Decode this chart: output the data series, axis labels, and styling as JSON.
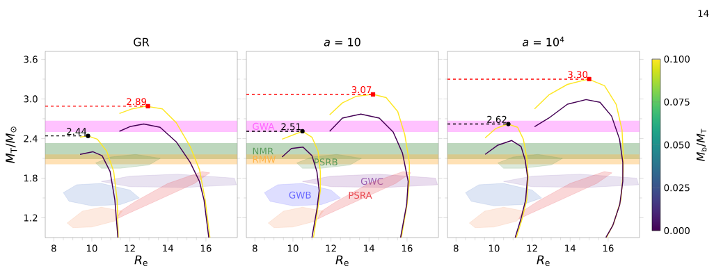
{
  "chart_data": [
    {
      "type": "line",
      "title": "GR",
      "xlabel": "*R*$_{e}$",
      "ylabel": "*M*$_{T}$/*M*$_{⊙}$",
      "xlim": [
        7.55,
        17.65
      ],
      "ylim": [
        0.9,
        3.72
      ],
      "xticks": [
        8,
        10,
        12,
        14,
        16
      ],
      "yticks": [
        1.2,
        1.8,
        2.4,
        {
          "value": 3,
          "label": "3.0"
        },
        3.6
      ],
      "bands": [
        {
          "axis": "y",
          "from": 2.5,
          "to": 2.67,
          "color": "#ff66ff"
        },
        {
          "axis": "y",
          "from": 2.09,
          "to": 2.33,
          "color": "#5a9a5a"
        },
        {
          "axis": "y",
          "from": 2.01,
          "to": 2.16,
          "color": "#ffb347"
        }
      ],
      "series": [
        {
          "type": "area",
          "color": "#5a9a5a",
          "x": [
            10.2,
            11.0,
            12.3,
            13.6,
            13.0,
            11.5,
            10.5
          ],
          "values": [
            2.03,
            2.12,
            2.16,
            2.1,
            2.0,
            1.95,
            1.95
          ]
        },
        {
          "type": "area",
          "color": "#6a8fd0",
          "x": [
            8.5,
            9.2,
            10.5,
            12.0,
            12.5,
            11.5,
            10.0,
            8.8
          ],
          "values": [
            1.58,
            1.7,
            1.72,
            1.62,
            1.5,
            1.4,
            1.38,
            1.45
          ]
        },
        {
          "type": "area",
          "color": "#9a7fc0",
          "x": [
            10.5,
            12.0,
            14.5,
            17.5,
            17.6,
            15.0,
            12.0
          ],
          "values": [
            1.75,
            1.83,
            1.86,
            1.8,
            1.7,
            1.66,
            1.67
          ]
        },
        {
          "type": "area",
          "color": "#e8474f",
          "x": [
            11.3,
            11.8,
            13.5,
            15.4,
            16.2,
            15.8,
            14.0,
            12.3,
            11.5
          ],
          "values": [
            1.18,
            1.25,
            1.47,
            1.72,
            1.88,
            1.9,
            1.72,
            1.45,
            1.3
          ]
        },
        {
          "type": "area",
          "color": "#f4a070",
          "x": [
            8.7,
            9.5,
            10.5,
            11.6,
            11.2,
            10.0,
            9.0
          ],
          "values": [
            1.12,
            1.3,
            1.36,
            1.3,
            1.15,
            1.06,
            1.05
          ]
        },
        {
          "color": "#fde725",
          "x": [
            9.38,
            9.78,
            10.29,
            10.78,
            11.15,
            11.33,
            11.39
          ],
          "values": [
            2.42,
            2.44,
            2.39,
            2.21,
            1.9,
            1.47,
            0.9
          ]
        },
        {
          "color": "#440154",
          "x": [
            9.38,
            10.05,
            10.54,
            10.96,
            11.21,
            11.37
          ],
          "values": [
            2.16,
            2.2,
            2.14,
            1.9,
            1.47,
            0.9
          ]
        },
        {
          "color": "#fde725",
          "x": [
            11.45,
            12.12,
            12.85,
            13.71,
            14.44,
            15.17,
            15.66,
            15.96,
            16.21
          ],
          "values": [
            2.78,
            2.85,
            2.89,
            2.85,
            2.64,
            2.28,
            1.93,
            1.47,
            0.9
          ]
        },
        {
          "color": "#440154",
          "x": [
            11.45,
            12.0,
            12.73,
            13.59,
            14.44,
            15.17,
            15.66,
            15.9,
            16.15
          ],
          "values": [
            2.51,
            2.58,
            2.62,
            2.57,
            2.35,
            2.04,
            1.75,
            1.47,
            0.9
          ]
        },
        {
          "line_style": "dashed",
          "marker": "circle",
          "color": "#000000",
          "x": [
            7.55,
            9.8
          ],
          "values": [
            2.44,
            2.44
          ],
          "value_labels": [
            null,
            "2.44"
          ]
        },
        {
          "line_style": "dashed",
          "marker": "square",
          "color": "#ff0000",
          "x": [
            7.55,
            12.95
          ],
          "values": [
            2.89,
            2.89
          ],
          "value_labels": [
            null,
            "2.89"
          ]
        }
      ]
    },
    {
      "type": "line",
      "title": "*a* = 10",
      "xlabel": "*R*$_{e}$",
      "tick_labels": "x",
      "xlim": [
        7.55,
        17.65
      ],
      "ylim": [
        0.9,
        3.72
      ],
      "xticks": [
        8,
        10,
        12,
        14,
        16
      ],
      "yticks": [
        1.2,
        1.8,
        2.4,
        3,
        3.6
      ],
      "bands": [
        {
          "axis": "y",
          "from": 2.5,
          "to": 2.67,
          "color": "#ff66ff",
          "label": "GWA"
        },
        {
          "axis": "y",
          "from": 2.09,
          "to": 2.33,
          "color": "#5a9a5a",
          "label": "NMR"
        },
        {
          "axis": "y",
          "from": 2.01,
          "to": 2.16,
          "color": "#ffb347",
          "label": "RMW"
        }
      ],
      "series": [
        {
          "type": "area",
          "name": "PSRB",
          "color": "#5a9a5a",
          "x": [
            10.2,
            11.0,
            12.3,
            13.6,
            13.0,
            11.5,
            10.5
          ],
          "values": [
            2.03,
            2.12,
            2.16,
            2.1,
            2.0,
            1.95,
            1.95
          ]
        },
        {
          "type": "area",
          "name": "GWB",
          "color": "#6a6aff",
          "x": [
            8.5,
            9.2,
            10.5,
            12.0,
            12.5,
            11.5,
            10.0,
            8.8
          ],
          "values": [
            1.58,
            1.7,
            1.72,
            1.62,
            1.5,
            1.4,
            1.38,
            1.45
          ]
        },
        {
          "type": "area",
          "name": "GWC",
          "color": "#9a5fb0",
          "x": [
            10.5,
            12.0,
            14.5,
            17.5,
            17.6,
            15.0,
            12.0
          ],
          "values": [
            1.75,
            1.83,
            1.86,
            1.8,
            1.7,
            1.66,
            1.67
          ]
        },
        {
          "type": "area",
          "name": "PSRA",
          "color": "#e8474f",
          "x": [
            11.3,
            11.8,
            13.5,
            15.4,
            16.2,
            15.8,
            14.0,
            12.3,
            11.5
          ],
          "values": [
            1.18,
            1.25,
            1.47,
            1.72,
            1.88,
            1.9,
            1.72,
            1.45,
            1.3
          ]
        },
        {
          "type": "area",
          "color": "#f4a070",
          "x": [
            8.7,
            9.5,
            10.5,
            11.6,
            11.2,
            10.0,
            9.0
          ],
          "values": [
            1.12,
            1.3,
            1.36,
            1.3,
            1.15,
            1.06,
            1.05
          ]
        },
        {
          "color": "#fde725",
          "x": [
            9.43,
            10.5,
            11.0,
            11.32,
            11.44,
            11.44,
            11.3,
            11.08
          ],
          "values": [
            2.39,
            2.51,
            2.42,
            2.21,
            1.9,
            1.61,
            1.33,
            0.9
          ]
        },
        {
          "color": "#440154",
          "x": [
            9.43,
            9.92,
            10.53,
            11.0,
            11.26,
            11.38,
            11.26,
            11.0
          ],
          "values": [
            2.12,
            2.25,
            2.27,
            2.14,
            1.9,
            1.61,
            1.33,
            0.9
          ]
        },
        {
          "color": "#fde725",
          "x": [
            11.93,
            12.6,
            13.33,
            14.21,
            14.9,
            15.51,
            15.88,
            16.12,
            16.12,
            16.0,
            15.7
          ],
          "values": [
            2.76,
            2.94,
            3.04,
            3.07,
            3.02,
            2.81,
            2.46,
            2.04,
            1.75,
            1.4,
            0.9
          ]
        },
        {
          "color": "#440154",
          "x": [
            11.93,
            12.6,
            13.57,
            14.54,
            15.27,
            15.76,
            16.06,
            15.98,
            15.66
          ],
          "values": [
            2.51,
            2.71,
            2.77,
            2.71,
            2.5,
            2.18,
            1.75,
            1.4,
            0.9
          ]
        },
        {
          "line_style": "dashed",
          "marker": "circle",
          "color": "#000000",
          "x": [
            7.55,
            10.5
          ],
          "values": [
            2.51,
            2.51
          ],
          "value_labels": [
            null,
            "2.51"
          ]
        },
        {
          "line_style": "dashed",
          "marker": "square",
          "color": "#ff0000",
          "x": [
            7.55,
            14.21
          ],
          "values": [
            3.07,
            3.07
          ],
          "value_labels": [
            null,
            "3.07"
          ]
        }
      ]
    },
    {
      "type": "line",
      "title": "*a* = 10$^{4}$",
      "xlabel": "*R*$_{e}$",
      "tick_labels": "x",
      "xlim": [
        7.55,
        17.65
      ],
      "ylim": [
        0.9,
        3.72
      ],
      "xticks": [
        8,
        10,
        12,
        14,
        16
      ],
      "yticks": [
        1.2,
        1.8,
        2.4,
        3,
        3.6
      ],
      "clabel": "*M*$_{b}$/*M*$_{T}$",
      "clim": [
        0,
        0.1
      ],
      "cticks": [
        {
          "value": 0,
          "label": "0.000"
        },
        {
          "value": 0.025,
          "label": "0.025"
        },
        {
          "value": 0.05,
          "label": "0.050"
        },
        {
          "value": 0.075,
          "label": "0.075"
        },
        {
          "value": 0.1,
          "label": "0.100"
        }
      ],
      "annotations": [
        "14"
      ],
      "bands": [
        {
          "axis": "y",
          "from": 2.5,
          "to": 2.67,
          "color": "#ff66ff"
        },
        {
          "axis": "y",
          "from": 2.09,
          "to": 2.33,
          "color": "#5a9a5a"
        },
        {
          "axis": "y",
          "from": 2.01,
          "to": 2.16,
          "color": "#ffb347"
        }
      ],
      "series": [
        {
          "type": "area",
          "color": "#5a9a5a",
          "x": [
            10.2,
            11.0,
            12.3,
            13.6,
            13.0,
            11.5,
            10.5
          ],
          "values": [
            2.03,
            2.12,
            2.16,
            2.1,
            2.0,
            1.95,
            1.95
          ]
        },
        {
          "type": "area",
          "color": "#6a8fd0",
          "x": [
            8.5,
            9.2,
            10.5,
            12.0,
            12.5,
            11.5,
            10.0,
            8.8
          ],
          "values": [
            1.58,
            1.7,
            1.72,
            1.62,
            1.5,
            1.4,
            1.38,
            1.45
          ]
        },
        {
          "type": "area",
          "color": "#9a7fc0",
          "x": [
            10.5,
            12.0,
            14.5,
            17.5,
            17.6,
            15.0,
            12.0
          ],
          "values": [
            1.75,
            1.83,
            1.86,
            1.8,
            1.7,
            1.66,
            1.67
          ]
        },
        {
          "type": "area",
          "color": "#e8474f",
          "x": [
            11.3,
            11.8,
            13.5,
            15.4,
            16.2,
            15.8,
            14.0,
            12.3,
            11.5
          ],
          "values": [
            1.18,
            1.25,
            1.47,
            1.72,
            1.88,
            1.9,
            1.72,
            1.45,
            1.3
          ]
        },
        {
          "type": "area",
          "color": "#f4a070",
          "x": [
            8.7,
            9.5,
            10.5,
            11.6,
            11.2,
            10.0,
            9.0
          ],
          "values": [
            1.12,
            1.3,
            1.36,
            1.3,
            1.15,
            1.06,
            1.05
          ]
        },
        {
          "color": "#fde725",
          "x": [
            9.53,
            10.08,
            10.72,
            11.24,
            11.54,
            11.72,
            11.79,
            11.72,
            11.48,
            11.17
          ],
          "values": [
            2.41,
            2.55,
            2.62,
            2.57,
            2.39,
            2.11,
            1.82,
            1.47,
            1.19,
            0.9
          ]
        },
        {
          "color": "#440154",
          "x": [
            9.53,
            10.2,
            10.93,
            11.42,
            11.64,
            11.76,
            11.66,
            11.42,
            11.11
          ],
          "values": [
            2.16,
            2.3,
            2.37,
            2.28,
            2.07,
            1.82,
            1.47,
            1.19,
            0.9
          ]
        },
        {
          "color": "#fde725",
          "x": [
            12.13,
            12.88,
            13.86,
            14.96,
            15.81,
            16.42,
            16.73,
            16.79,
            16.79,
            16.67,
            16.3,
            15.91
          ],
          "values": [
            2.85,
            3.06,
            3.22,
            3.3,
            3.2,
            2.92,
            2.53,
            2.18,
            1.9,
            1.47,
            1.12,
            0.9
          ]
        },
        {
          "color": "#440154",
          "x": [
            12.13,
            12.88,
            13.86,
            14.84,
            15.57,
            16.18,
            16.6,
            16.77,
            16.77,
            16.61,
            16.24,
            15.88
          ],
          "values": [
            2.58,
            2.71,
            2.92,
            2.99,
            2.95,
            2.74,
            2.39,
            2.04,
            1.75,
            1.4,
            1.08,
            0.9
          ]
        },
        {
          "line_style": "dashed",
          "marker": "circle",
          "color": "#000000",
          "x": [
            7.55,
            10.75
          ],
          "values": [
            2.62,
            2.62
          ],
          "value_labels": [
            null,
            "2.62"
          ]
        },
        {
          "line_style": "dashed",
          "marker": "square",
          "color": "#ff0000",
          "x": [
            7.55,
            15.0
          ],
          "values": [
            3.3,
            3.3
          ],
          "value_labels": [
            null,
            "3.30"
          ]
        }
      ]
    }
  ]
}
